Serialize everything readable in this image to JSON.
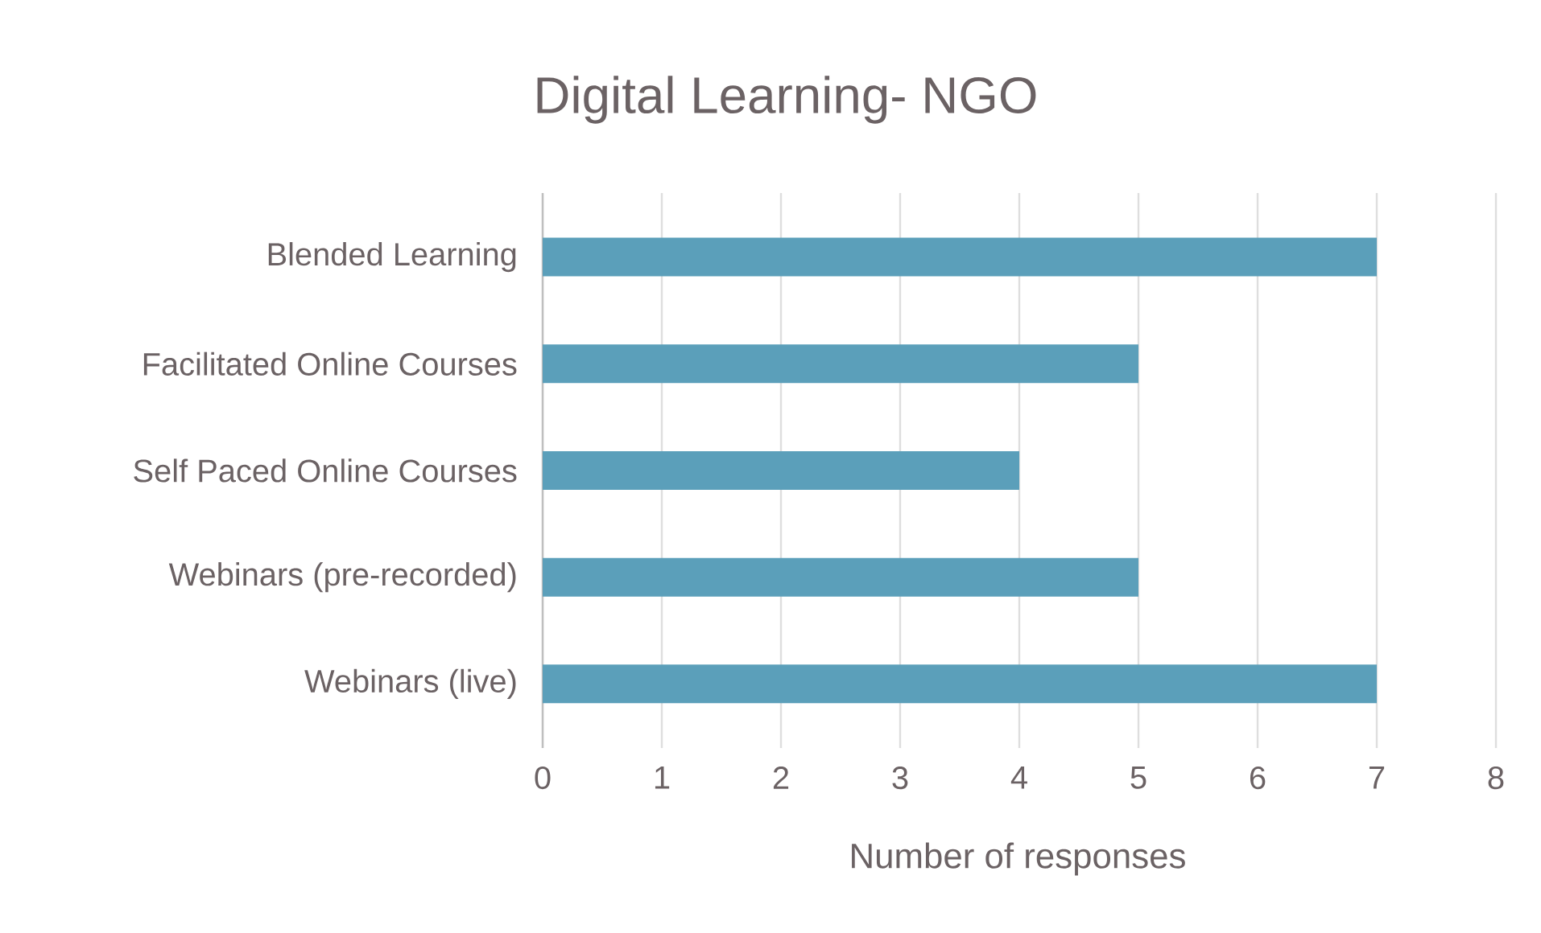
{
  "chart_data": {
    "type": "bar",
    "orientation": "horizontal",
    "title": "Digital Learning- NGO",
    "xlabel": "Number of responses",
    "categories": [
      "Blended Learning",
      "Facilitated Online Courses",
      "Self Paced Online Courses",
      "Webinars (pre-recorded)",
      "Webinars (live)"
    ],
    "values": [
      7,
      5,
      4,
      5,
      7
    ],
    "color": "#5b9fba",
    "xlim": [
      0,
      8
    ],
    "xticks": [
      0,
      1,
      2,
      3,
      4,
      5,
      6,
      7,
      8
    ],
    "grid": "x"
  }
}
